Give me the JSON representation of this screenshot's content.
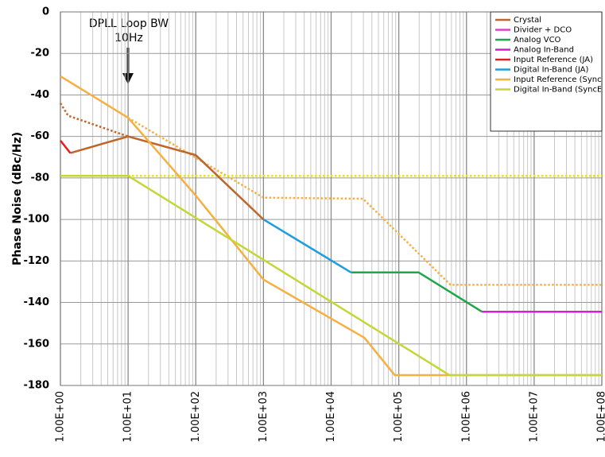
{
  "chart_data": {
    "type": "line",
    "y_label": "Phase Noise (dBc/Hz)",
    "annotation": [
      "DPLL Loop BW",
      "10Hz"
    ],
    "xlog": true,
    "grid": true,
    "minor_grid": true,
    "xlim": [
      1,
      100000000
    ],
    "ylim": [
      -180,
      0
    ],
    "xticks": [
      {
        "value": 1,
        "label": "1.00E+00"
      },
      {
        "value": 10,
        "label": "1.00E+01"
      },
      {
        "value": 100,
        "label": "1.00E+02"
      },
      {
        "value": 1000,
        "label": "1.00E+03"
      },
      {
        "value": 10000,
        "label": "1.00E+04"
      },
      {
        "value": 100000,
        "label": "1.00E+05"
      },
      {
        "value": 1000000,
        "label": "1.00E+06"
      },
      {
        "value": 10000000,
        "label": "1.00E+07"
      },
      {
        "value": 100000000,
        "label": "1.00E+08"
      }
    ],
    "yticks": [
      -180,
      -160,
      -140,
      -120,
      -100,
      -80,
      -60,
      -40,
      -20,
      0
    ],
    "legend": "top-right",
    "series": [
      {
        "name": "Crystal",
        "color": "#c0652a",
        "x": [
          1.4,
          10,
          100,
          1000
        ],
        "values": [
          -68,
          -60,
          -69,
          -100
        ]
      },
      {
        "name": "Divider + DCO",
        "color": "#e040c0",
        "x": [],
        "values": []
      },
      {
        "name": "Analog VCO",
        "color": "#1fa64a",
        "x": [
          19600,
          196000,
          1700000
        ],
        "values": [
          -125.5,
          -125.5,
          -144.5
        ]
      },
      {
        "name": "Analog In-Band",
        "color": "#d21fd2",
        "x": [
          1700000,
          100000000
        ],
        "values": [
          -144.5,
          -144.5
        ]
      },
      {
        "name": "Input Reference (JA)",
        "color": "#e3201b",
        "x": [
          1,
          1.4
        ],
        "values": [
          -62,
          -68
        ]
      },
      {
        "name": "Digital In-Band (JA)",
        "color": "#1e9ee0",
        "x": [
          1000,
          19600
        ],
        "values": [
          -100,
          -125.5
        ]
      },
      {
        "name": "Input Reference (SyncE)",
        "color": "#f5b041",
        "x": [
          1,
          10,
          100,
          1000,
          31000,
          87000,
          100000000
        ],
        "values": [
          -31,
          -51,
          -88.5,
          -129,
          -157,
          -175,
          -175
        ]
      },
      {
        "name": "Digital In-Band (SyncE)",
        "color": "#c5d63a",
        "x": [
          1,
          10,
          560000,
          100000000
        ],
        "values": [
          -79,
          -79,
          -175,
          -175
        ]
      },
      {
        "color": "#c0652a",
        "dashed": true,
        "x": [
          1,
          1.3,
          10
        ],
        "values": [
          -44,
          -50,
          -60
        ]
      },
      {
        "color": "#f5b041",
        "dashed": true,
        "x": [
          10,
          1000,
          29600,
          580000,
          100000000
        ],
        "values": [
          -51,
          -89.5,
          -90,
          -131.5,
          -131.5
        ]
      },
      {
        "color": "#e8e020",
        "dashed": true,
        "x": [
          1,
          100000000
        ],
        "values": [
          -79,
          -79
        ]
      }
    ]
  }
}
